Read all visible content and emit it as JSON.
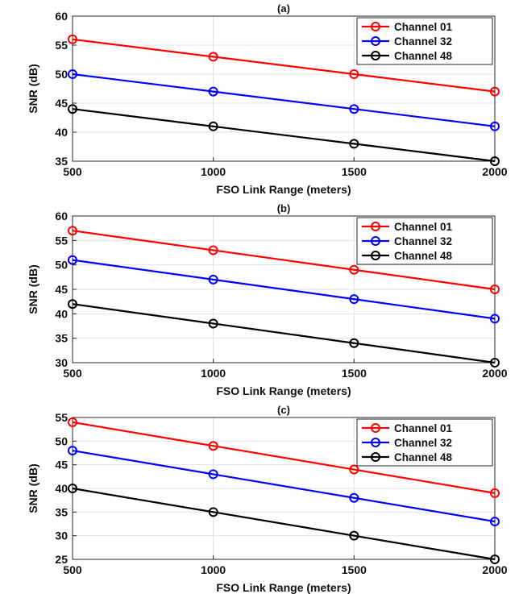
{
  "chart_data": [
    {
      "type": "line",
      "title": "(a)",
      "xlabel": "FSO Link Range (meters)",
      "ylabel": "SNR (dB)",
      "xlim": [
        500,
        2000
      ],
      "ylim": [
        35,
        60
      ],
      "xticks": [
        500,
        1000,
        1500,
        2000
      ],
      "yticks": [
        35,
        40,
        45,
        50,
        55,
        60
      ],
      "grid": true,
      "legend_position": "top-right",
      "x": [
        500,
        1000,
        1500,
        2000
      ],
      "series": [
        {
          "name": "Channel 01",
          "color": "#ff0000",
          "values": [
            56,
            53,
            50,
            47
          ]
        },
        {
          "name": "Channel 32",
          "color": "#0000ff",
          "values": [
            50,
            47,
            44,
            41
          ]
        },
        {
          "name": "Channel 48",
          "color": "#000000",
          "values": [
            44,
            41,
            38,
            35
          ]
        }
      ]
    },
    {
      "type": "line",
      "title": "(b)",
      "xlabel": "FSO Link Range (meters)",
      "ylabel": "SNR (dB)",
      "xlim": [
        500,
        2000
      ],
      "ylim": [
        30,
        60
      ],
      "xticks": [
        500,
        1000,
        1500,
        2000
      ],
      "yticks": [
        30,
        35,
        40,
        45,
        50,
        55,
        60
      ],
      "grid": true,
      "legend_position": "top-right",
      "x": [
        500,
        1000,
        1500,
        2000
      ],
      "series": [
        {
          "name": "Channel 01",
          "color": "#ff0000",
          "values": [
            57,
            53,
            49,
            45
          ]
        },
        {
          "name": "Channel 32",
          "color": "#0000ff",
          "values": [
            51,
            47,
            43,
            39
          ]
        },
        {
          "name": "Channel 48",
          "color": "#000000",
          "values": [
            42,
            38,
            34,
            30
          ]
        }
      ]
    },
    {
      "type": "line",
      "title": "(c)",
      "xlabel": "FSO Link Range (meters)",
      "ylabel": "SNR (dB)",
      "xlim": [
        500,
        2000
      ],
      "ylim": [
        25,
        55
      ],
      "xticks": [
        500,
        1000,
        1500,
        2000
      ],
      "yticks": [
        25,
        30,
        35,
        40,
        45,
        50,
        55
      ],
      "grid": true,
      "legend_position": "top-right",
      "x": [
        500,
        1000,
        1500,
        2000
      ],
      "series": [
        {
          "name": "Channel 01",
          "color": "#ff0000",
          "values": [
            54,
            49,
            44,
            39
          ]
        },
        {
          "name": "Channel 32",
          "color": "#0000ff",
          "values": [
            48,
            43,
            38,
            33
          ]
        },
        {
          "name": "Channel 48",
          "color": "#000000",
          "values": [
            40,
            35,
            30,
            25
          ]
        }
      ]
    }
  ]
}
